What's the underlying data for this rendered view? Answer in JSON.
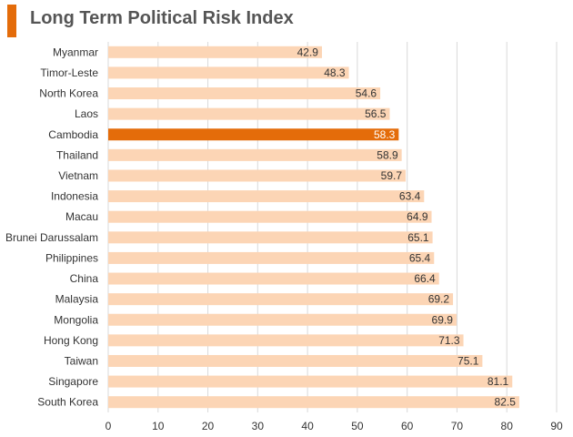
{
  "chart_data": {
    "type": "bar",
    "orientation": "horizontal",
    "title": "Long Term Political Risk Index",
    "categories": [
      "Myanmar",
      "Timor-Leste",
      "North Korea",
      "Laos",
      "Cambodia",
      "Thailand",
      "Vietnam",
      "Indonesia",
      "Macau",
      "Brunei Darussalam",
      "Philippines",
      "China",
      "Malaysia",
      "Mongolia",
      "Hong Kong",
      "Taiwan",
      "Singapore",
      "South Korea"
    ],
    "values": [
      42.9,
      48.3,
      54.6,
      56.5,
      58.3,
      58.9,
      59.7,
      63.4,
      64.9,
      65.1,
      65.4,
      66.4,
      69.2,
      69.9,
      71.3,
      75.1,
      81.1,
      82.5
    ],
    "value_labels": [
      "42.9",
      "48.3",
      "54.6",
      "56.5",
      "58.3",
      "58.9",
      "59.7",
      "63.4",
      "64.9",
      "65.1",
      "65.4",
      "66.4",
      "69.2",
      "69.9",
      "71.3",
      "75.1",
      "81.1",
      "82.5"
    ],
    "highlight": "Cambodia",
    "xlim": [
      0,
      90
    ],
    "xticks": [
      "0",
      "10",
      "20",
      "30",
      "40",
      "50",
      "60",
      "70",
      "80",
      "90"
    ],
    "grid": "vertical",
    "colors": {
      "bar": "#fcd5b5",
      "highlight_bar": "#e46c0a",
      "accent": "#e46c0a",
      "grid": "#d9d9d9",
      "label": "#333333",
      "highlight_label": "#ffffff",
      "title": "#555555"
    }
  }
}
